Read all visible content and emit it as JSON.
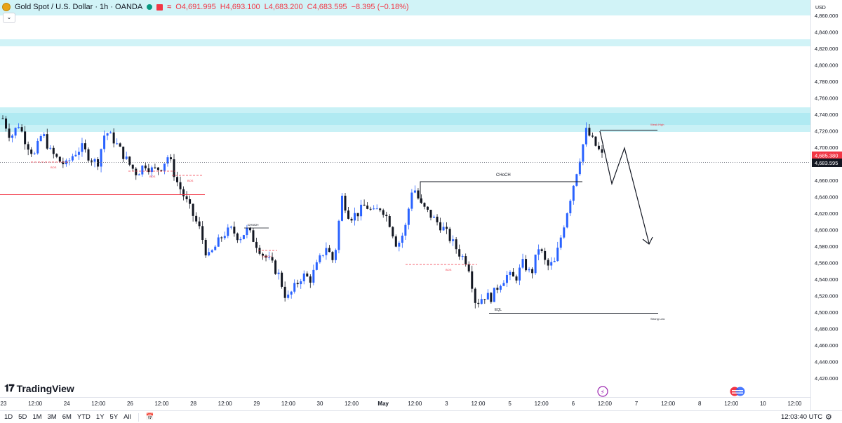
{
  "legend": {
    "title": "Gold Spot / U.S. Dollar · 1h · OANDA",
    "open": "O4,691.995",
    "high": "H4,693.100",
    "low": "L4,683.200",
    "close": "C4,683.595",
    "change": "−8.395 (−0.18%)",
    "colors": {
      "down": "#f23645",
      "up": "#089981"
    }
  },
  "price_axis": {
    "currency": "USD",
    "ticks": [
      "4,860.000",
      "4,840.000",
      "4,820.000",
      "4,800.000",
      "4,780.000",
      "4,760.000",
      "4,740.000",
      "4,720.000",
      "4,700.000",
      "4,680.000",
      "4,660.000",
      "4,640.000",
      "4,620.000",
      "4,600.000",
      "4,580.000",
      "4,560.000",
      "4,540.000",
      "4,520.000",
      "4,500.000",
      "4,480.000",
      "4,460.000",
      "4,440.000",
      "4,420.000"
    ],
    "last_price_label": "4,683.595",
    "pending_price_label": "4,685.380"
  },
  "time_axis": {
    "ticks": [
      "23",
      "12:00",
      "24",
      "12:00",
      "26",
      "12:00",
      "28",
      "12:00",
      "29",
      "12:00",
      "30",
      "12:00",
      "May",
      "12:00",
      "3",
      "12:00",
      "5",
      "12:00",
      "6",
      "12:00",
      "7",
      "12:00",
      "8",
      "12:00",
      "10",
      "12:00"
    ]
  },
  "annotations": {
    "weak_high": "Weak High",
    "strong_low": "Strong Low",
    "choch_main": "CHoCH",
    "choch_small": "CHoCH",
    "choch_red": "CHoCH",
    "eql": "EQL",
    "bos_1": "BOS",
    "bos_2": "BOS",
    "bos_3": "BOS",
    "bos_4": "BOS"
  },
  "chart_data": {
    "type": "candlestick",
    "symbol": "Gold Spot / U.S. Dollar",
    "interval": "1h",
    "ylim": [
      4410,
      4878
    ],
    "colors": {
      "up": "#2962ff",
      "down": "#131722",
      "zone": "#b2ebf2"
    },
    "supply_zones": [
      [
        4842,
        4870
      ],
      [
        4820,
        4830
      ],
      [
        4721,
        4751
      ]
    ],
    "horizontal_levels": {
      "last_price": 4683.595,
      "red_level": 4643
    },
    "projection_path": [
      [
        4720,
        0
      ],
      [
        4658,
        1
      ],
      [
        4700,
        2
      ],
      [
        4585,
        3
      ]
    ],
    "close_path": [
      4735,
      4712,
      4728,
      4705,
      4690,
      4718,
      4695,
      4685,
      4678,
      4692,
      4700,
      4688,
      4680,
      4720,
      4710,
      4695,
      4680,
      4668,
      4680,
      4672,
      4675,
      4690,
      4660,
      4640,
      4620,
      4600,
      4565,
      4580,
      4595,
      4600,
      4590,
      4600,
      4585,
      4570,
      4560,
      4545,
      4515,
      4530,
      4545,
      4540,
      4560,
      4580,
      4560,
      4640,
      4615,
      4620,
      4630,
      4620,
      4628,
      4610,
      4580,
      4600,
      4655,
      4630,
      4620,
      4610,
      4600,
      4585,
      4570,
      4560,
      4510,
      4520,
      4518,
      4535,
      4545,
      4540,
      4560,
      4545,
      4580,
      4555,
      4560,
      4600,
      4640,
      4680,
      4720,
      4705,
      4690
    ]
  }
}
